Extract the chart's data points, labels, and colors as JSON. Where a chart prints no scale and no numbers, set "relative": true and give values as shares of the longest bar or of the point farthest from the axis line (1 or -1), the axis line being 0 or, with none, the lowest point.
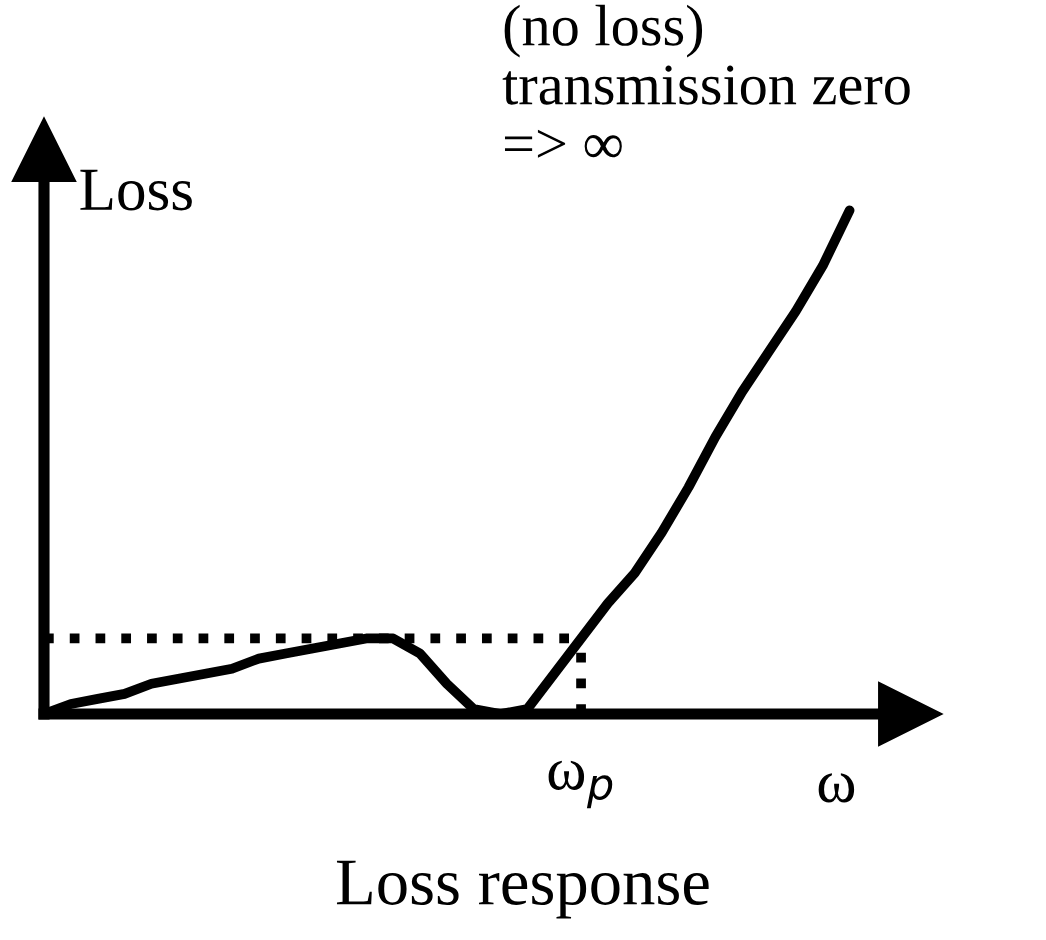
{
  "chart_data": {
    "type": "line",
    "title": "Loss response",
    "xlabel": "ω",
    "ylabel": "Loss",
    "relative": true,
    "marker": "none",
    "categories": [
      null,
      null,
      null,
      null,
      null,
      null,
      null,
      null,
      null,
      null,
      null,
      null,
      null,
      null,
      null,
      null,
      null,
      null,
      null,
      null,
      null,
      null,
      null,
      null,
      null,
      null,
      null,
      null,
      null,
      null,
      null
    ],
    "annotations": [
      "(no loss)\ntransmission zero\n=> ∞",
      "ω$_{p}$"
    ],
    "series": [
      {
        "color": "#000000",
        "line_style": "solid",
        "values": [
          0,
          0.02,
          0.03,
          0.04,
          0.06,
          0.07,
          0.08,
          0.09,
          0.11,
          0.12,
          0.13,
          0.14,
          0.15,
          0.15,
          0.12,
          0.06,
          0.01,
          0,
          0.01,
          0.08,
          0.15,
          0.22,
          0.28,
          0.36,
          0.45,
          0.55,
          0.64,
          0.72,
          0.8,
          0.89,
          1
        ]
      },
      {
        "color": "#000000",
        "line_style": "dotted",
        "values": [
          0.15,
          0.15,
          0.15,
          0.15,
          0.15,
          0.15,
          0.15,
          0.15,
          0.15,
          0.15,
          0.15,
          0.15,
          0.15,
          0.15,
          0.15,
          0.15,
          0.15,
          0.15,
          0.15,
          0.15,
          0.15,
          null,
          null,
          null,
          null,
          null,
          null,
          null,
          null,
          null,
          null
        ]
      }
    ]
  }
}
